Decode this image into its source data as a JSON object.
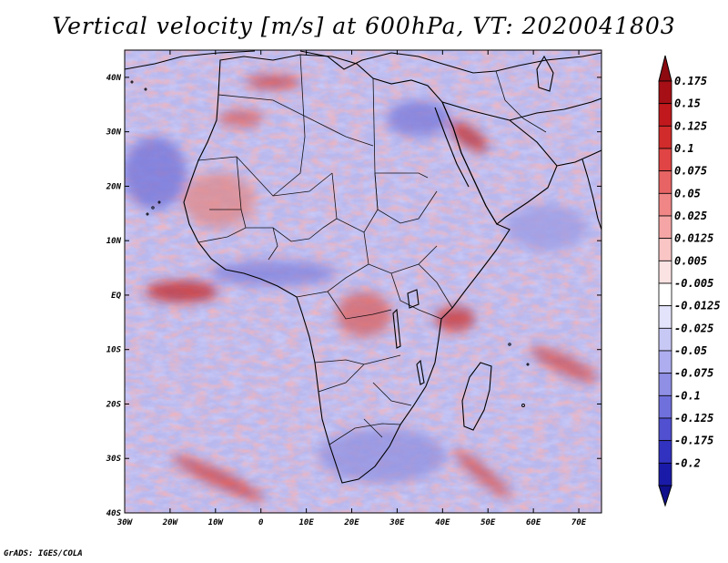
{
  "title": "Vertical velocity [m/s] at 600hPa, VT: 2020041803",
  "credit": "GrADS: IGES/COLA",
  "map": {
    "type": "filled-contour-map",
    "region": "Africa",
    "lon_range": [
      -30,
      75
    ],
    "lat_range": [
      -40,
      45
    ],
    "lon_ticks": [
      {
        "value": -30,
        "label": "30W"
      },
      {
        "value": -20,
        "label": "20W"
      },
      {
        "value": -10,
        "label": "10W"
      },
      {
        "value": 0,
        "label": "0"
      },
      {
        "value": 10,
        "label": "10E"
      },
      {
        "value": 20,
        "label": "20E"
      },
      {
        "value": 30,
        "label": "30E"
      },
      {
        "value": 40,
        "label": "40E"
      },
      {
        "value": 50,
        "label": "50E"
      },
      {
        "value": 60,
        "label": "60E"
      },
      {
        "value": 70,
        "label": "70E"
      }
    ],
    "lat_ticks": [
      {
        "value": 40,
        "label": "40N"
      },
      {
        "value": 30,
        "label": "30N"
      },
      {
        "value": 20,
        "label": "20N"
      },
      {
        "value": 10,
        "label": "10N"
      },
      {
        "value": 0,
        "label": "EQ"
      },
      {
        "value": -10,
        "label": "10S"
      },
      {
        "value": -20,
        "label": "20S"
      },
      {
        "value": -30,
        "label": "30S"
      },
      {
        "value": -40,
        "label": "40S"
      }
    ]
  },
  "colorbar": {
    "levels": [
      {
        "label": "0.175",
        "color": "#a50f15"
      },
      {
        "label": "0.15",
        "color": "#c0181c"
      },
      {
        "label": "0.125",
        "color": "#d22b2b"
      },
      {
        "label": "0.1",
        "color": "#e04444"
      },
      {
        "label": "0.075",
        "color": "#e86464"
      },
      {
        "label": "0.05",
        "color": "#f08686"
      },
      {
        "label": "0.025",
        "color": "#f5a5a5"
      },
      {
        "label": "0.0125",
        "color": "#f9c5c5"
      },
      {
        "label": "0.005",
        "color": "#fce3e3"
      },
      {
        "label": "-0.005",
        "color": "#ffffff"
      },
      {
        "label": "-0.0125",
        "color": "#e3e3fb"
      },
      {
        "label": "-0.025",
        "color": "#c8c8f5"
      },
      {
        "label": "-0.05",
        "color": "#adadef"
      },
      {
        "label": "-0.075",
        "color": "#8f8fe6"
      },
      {
        "label": "-0.1",
        "color": "#7070dc"
      },
      {
        "label": "-0.125",
        "color": "#5050d0"
      },
      {
        "label": "-0.175",
        "color": "#3232c0"
      },
      {
        "label": "-0.2",
        "color": "#1a1aa8"
      }
    ],
    "top_arrow_color": "#8c0a10",
    "bottom_arrow_color": "#10108c"
  }
}
